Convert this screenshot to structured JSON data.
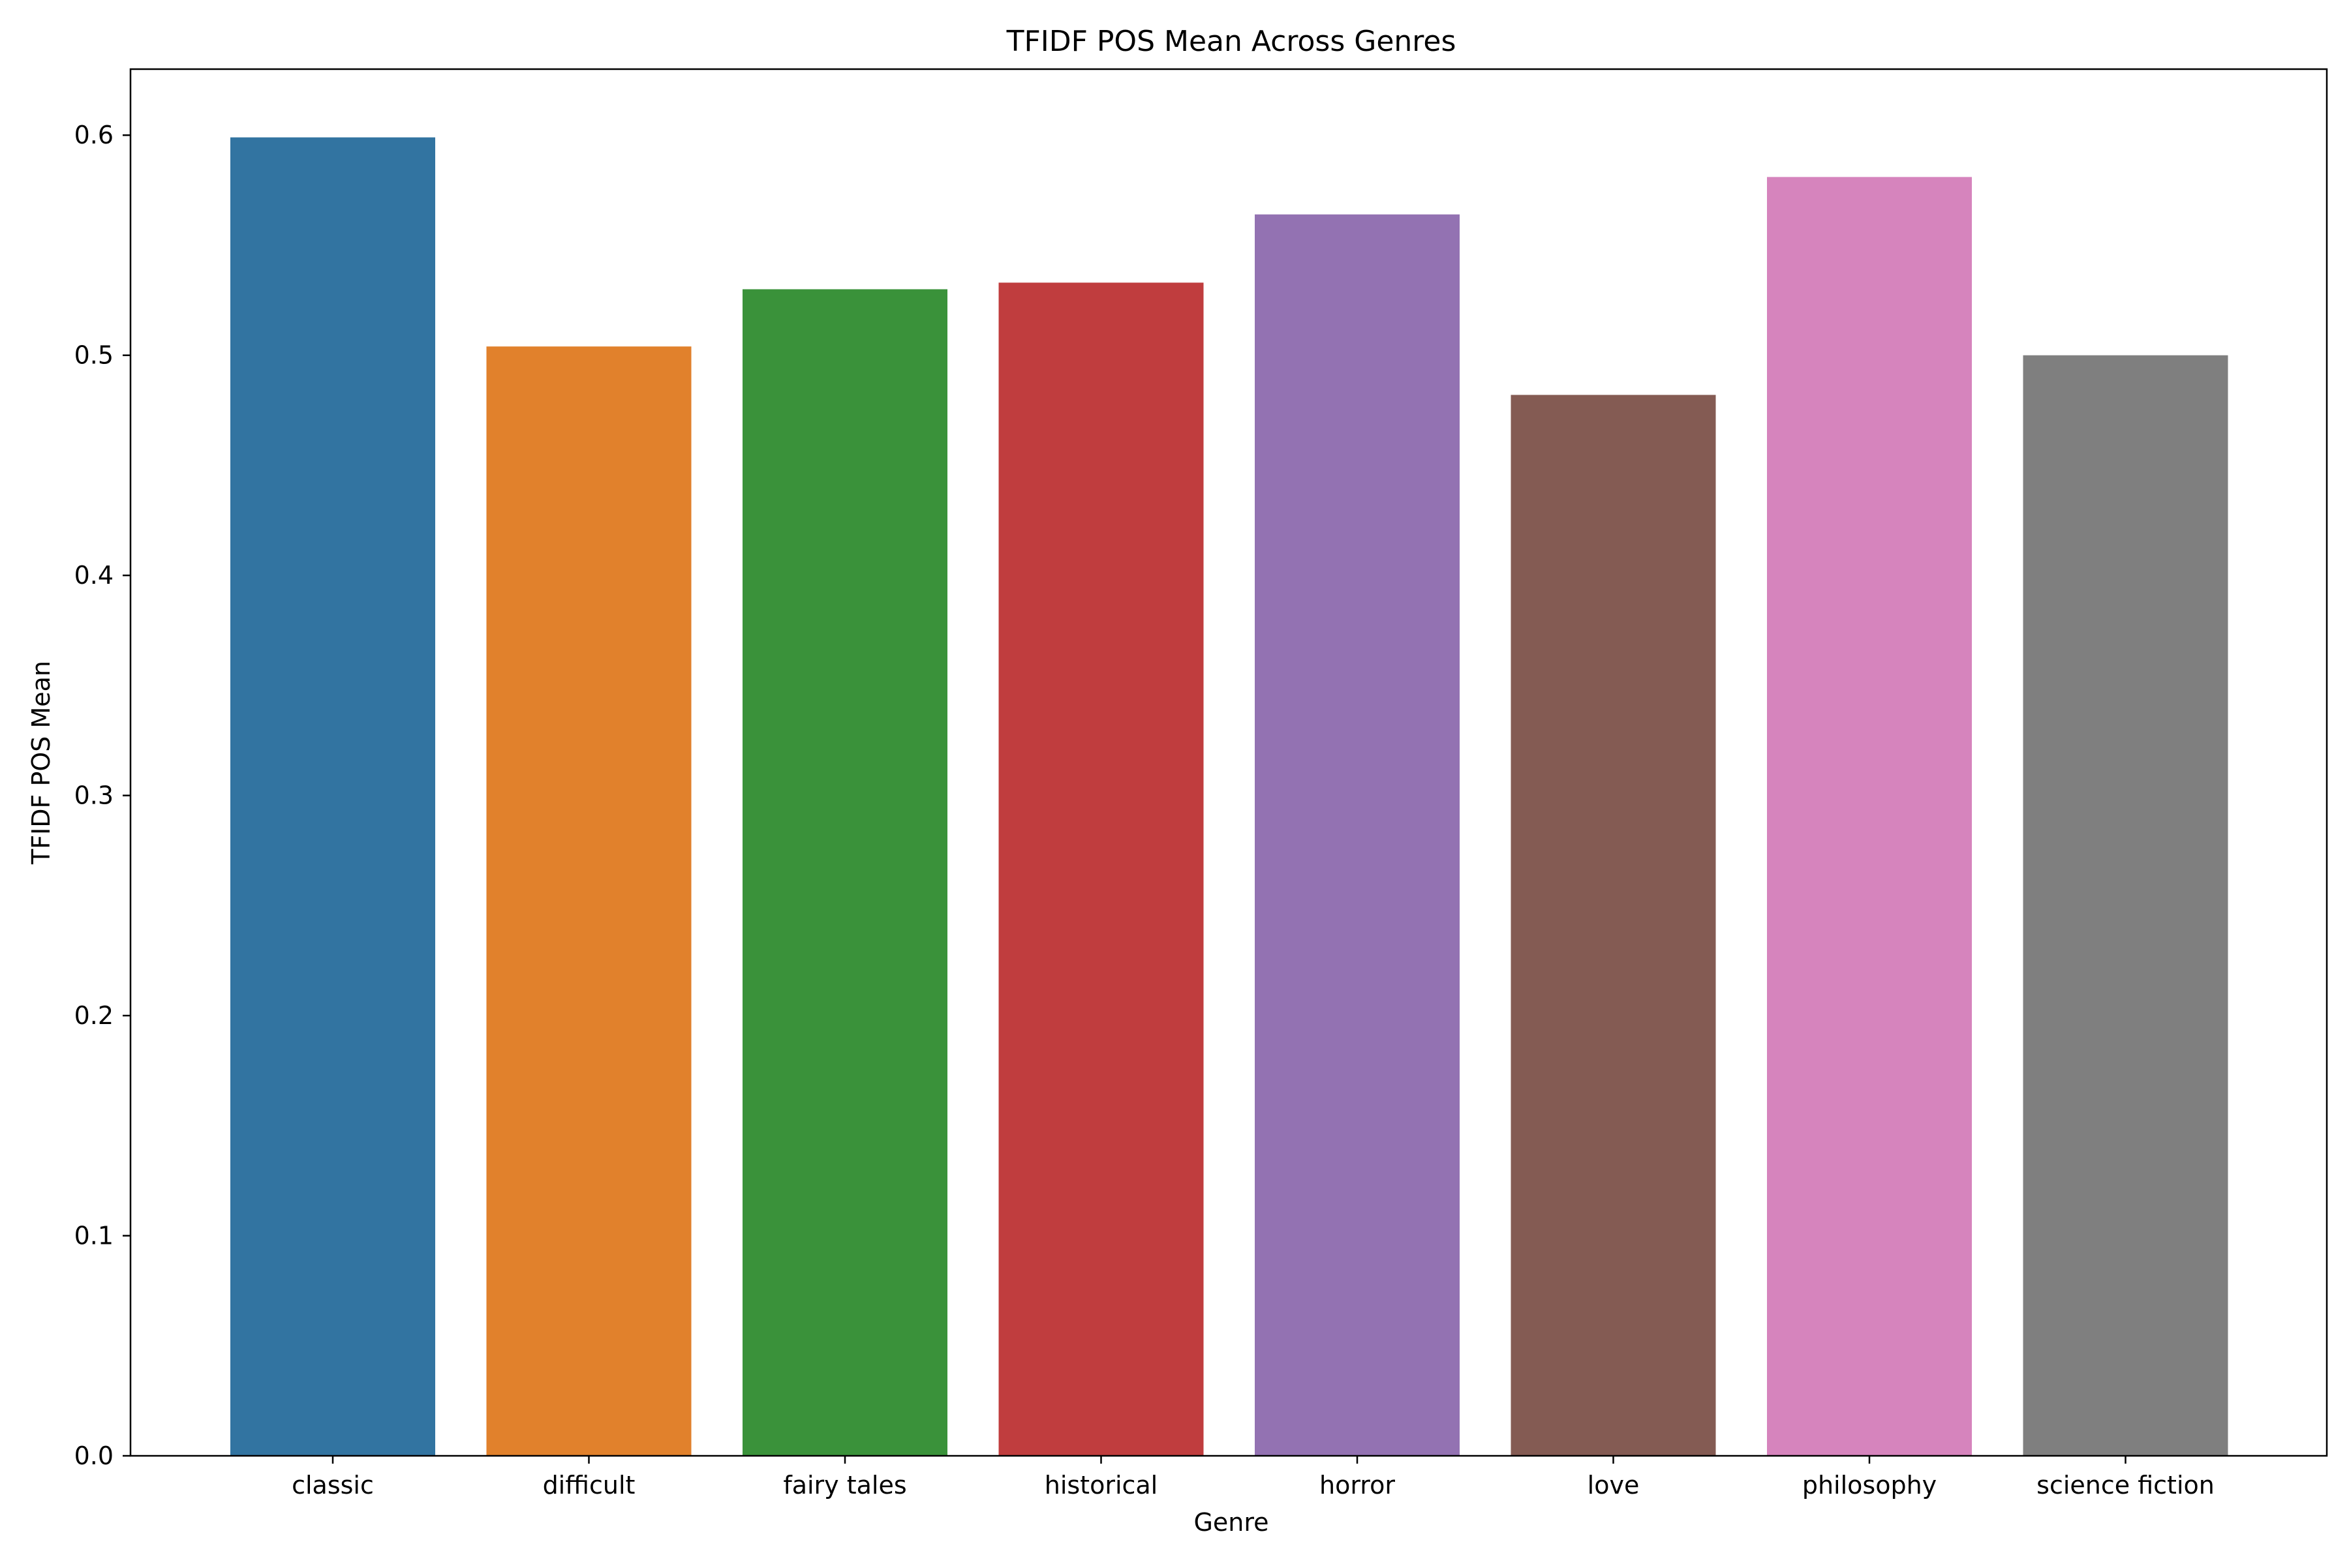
{
  "chart_data": {
    "type": "bar",
    "title": "TFIDF POS Mean Across Genres",
    "xlabel": "Genre",
    "ylabel": "TFIDF POS Mean",
    "categories": [
      "classic",
      "difficult",
      "fairy tales",
      "historical",
      "horror",
      "love",
      "philosophy",
      "science fiction"
    ],
    "values": [
      0.599,
      0.504,
      0.53,
      0.533,
      0.564,
      0.482,
      0.581,
      0.5
    ],
    "colors": [
      "#3274a1",
      "#e1812c",
      "#3a923a",
      "#c03d3e",
      "#9372b2",
      "#845b53",
      "#d684bd",
      "#7f7f7f"
    ],
    "ylim": [
      0,
      0.63
    ],
    "yticks": [
      0.0,
      0.1,
      0.2,
      0.3,
      0.4,
      0.5,
      0.6
    ],
    "ytick_labels": [
      "0.0",
      "0.1",
      "0.2",
      "0.3",
      "0.4",
      "0.5",
      "0.6"
    ],
    "grid": false,
    "legend": "none"
  }
}
